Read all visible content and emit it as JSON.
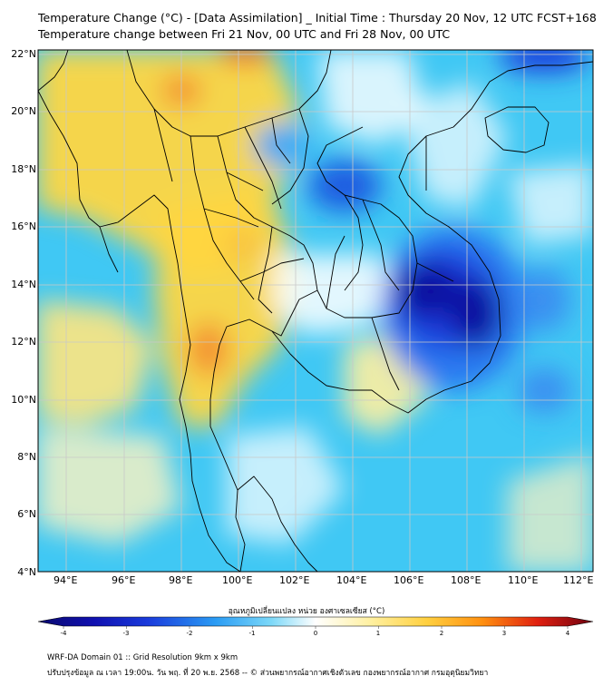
{
  "title_line1": "Temperature Change (°C) - [Data Assimilation] _ Initial Time : Thursday 20 Nov, 12 UTC FCST+168",
  "title_line2": "Temperature change between Fri 21 Nov, 00 UTC and Fri 28 Nov, 00 UTC",
  "lat_labels": [
    "22°N",
    "20°N",
    "18°N",
    "16°N",
    "14°N",
    "12°N",
    "10°N",
    "8°N",
    "6°N",
    "4°N"
  ],
  "lon_labels": [
    "94°E",
    "96°E",
    "98°E",
    "100°E",
    "102°E",
    "104°E",
    "106°E",
    "108°E",
    "110°E",
    "112°E"
  ],
  "colorbar": {
    "title": "อุณหภูมิเปลี่ยนแปลง หน่วย องศาเซลเซียส (°C)",
    "ticks": [
      "-4",
      "-3",
      "-2",
      "-1",
      "0",
      "1",
      "2",
      "3",
      "4"
    ],
    "colors": [
      "#0a0a6e",
      "#1010b0",
      "#1a3cdc",
      "#2a78f0",
      "#3cb4f8",
      "#8cdcf8",
      "#ffffff",
      "#fff5b0",
      "#ffe060",
      "#ffc020",
      "#ff8c10",
      "#f03010",
      "#c00010",
      "#6e0010"
    ]
  },
  "footer_line1": "WRF-DA Domain 01 :: Grid Resolution 9km x 9km",
  "footer_line2": "ปรับปรุงข้อมูล ณ เวลา 19:00น. วัน พฤ. ที่ 20 พ.ย. 2568 -- © ส่วนพยากรณ์อากาศเชิงตัวเลข กองพยากรณ์อากาศ กรมอุตุนิยมวิทยา",
  "colors": {
    "background": "#40c8f4",
    "warm": "#ffd640",
    "cool": "#1a3cdc",
    "deep_cool": "#0b10a0",
    "hot": "#f07020",
    "border": "#000000",
    "grid": "#d0d0d0"
  }
}
